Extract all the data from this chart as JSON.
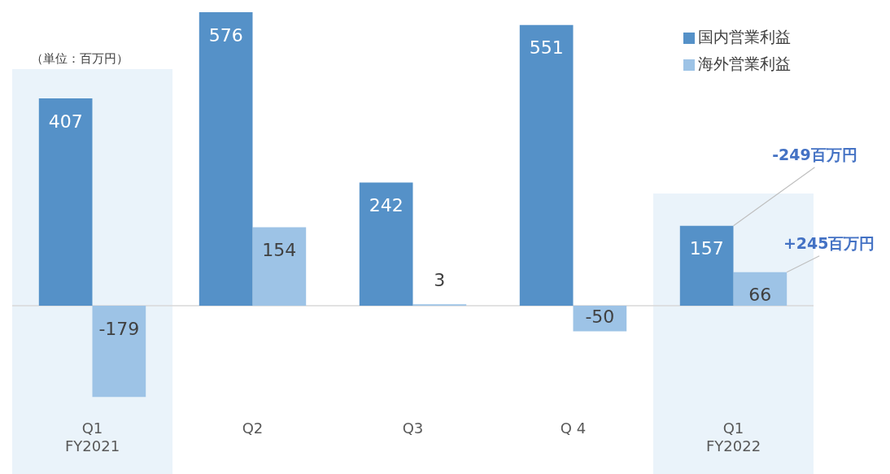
{
  "chart_data": {
    "type": "bar",
    "categories": [
      "Q1\nFY2021",
      "Q2",
      "Q3",
      "Q 4",
      "Q1\nFY2022"
    ],
    "series": [
      {
        "name": "国内営業利益",
        "color": "#5591c8",
        "values": [
          407,
          576,
          242,
          551,
          157
        ]
      },
      {
        "name": "海外営業利益",
        "color": "#9dc3e6",
        "values": [
          -179,
          154,
          3,
          -50,
          66
        ]
      }
    ],
    "data_labels": true,
    "legend": "top right",
    "grid": false,
    "bands": [
      {
        "axis": "x",
        "from": "Q1\nFY2021",
        "to": "Q1\nFY2021",
        "color": "#eaf3fa"
      },
      {
        "axis": "x",
        "from": "Q1\nFY2022",
        "to": "Q1\nFY2022",
        "color": "#eaf3fa"
      }
    ],
    "annotations": [
      "（単位：百万円）",
      {
        "text": "-249百万円",
        "x": "Q1\nFY2022",
        "y": 157
      },
      "+245百万円"
    ]
  }
}
